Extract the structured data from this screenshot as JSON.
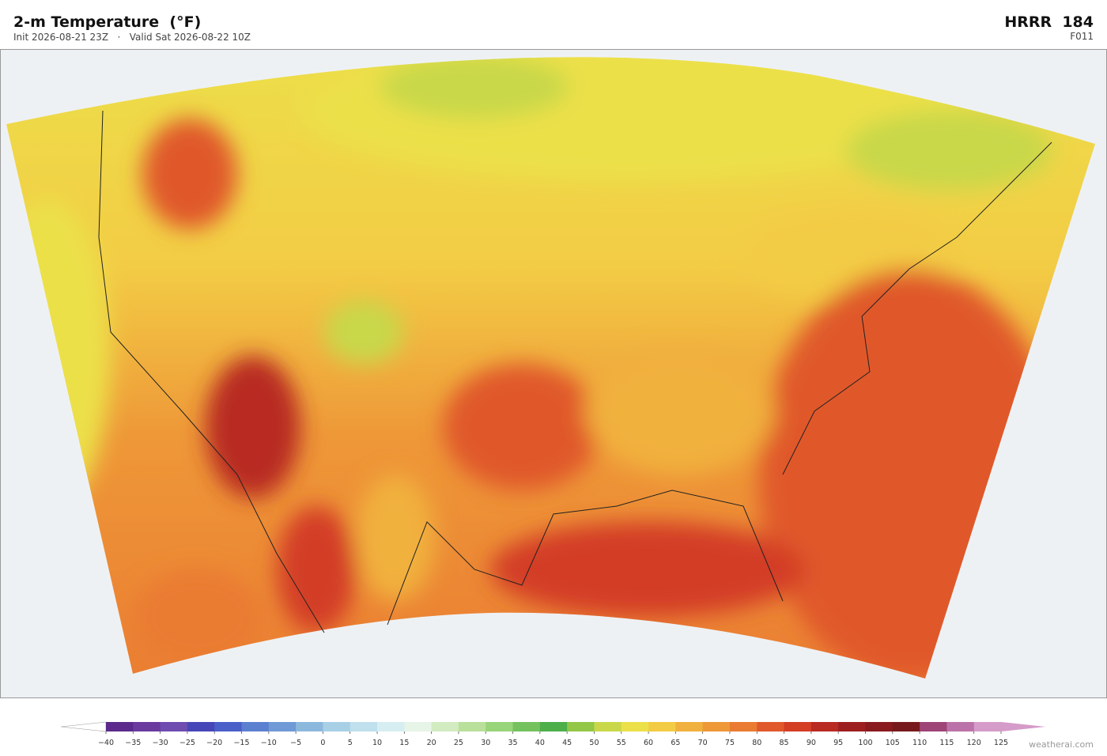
{
  "header": {
    "title": "2-m Temperature  (°F)",
    "subtitle": "Init 2026-08-21 23Z   ·   Valid Sat 2026-08-22 10Z",
    "model": "HRRR  184",
    "forecast": "F011"
  },
  "colorbar": {
    "ticks": [
      {
        "value": -40,
        "label": "−40"
      },
      {
        "value": -35,
        "label": "−35"
      },
      {
        "value": -30,
        "label": "−30"
      },
      {
        "value": -25,
        "label": "−25"
      },
      {
        "value": -20,
        "label": "−20"
      },
      {
        "value": -15,
        "label": "−15"
      },
      {
        "value": -10,
        "label": "−10"
      },
      {
        "value": -5,
        "label": "−5"
      },
      0,
      5,
      10,
      15,
      20,
      25,
      30,
      35,
      40,
      45,
      50,
      55,
      60,
      65,
      70,
      75,
      80,
      85,
      90,
      95,
      100,
      105,
      110,
      115,
      120,
      125
    ],
    "colors": [
      "#5b2a8c",
      "#6b3a9f",
      "#6e4cb0",
      "#4646b8",
      "#4a5fc8",
      "#5b80d0",
      "#6f9ad6",
      "#8db8dd",
      "#a7d0e6",
      "#bfe0ec",
      "#d6eef2",
      "#e6f5e8",
      "#d2ebc0",
      "#b9e09a",
      "#98d47a",
      "#74c25e",
      "#4caf4a",
      "#93c748",
      "#c8d84a",
      "#ece04a",
      "#f3cc45",
      "#f1b13e",
      "#ee9838",
      "#ea7b32",
      "#e0582c",
      "#d33e25",
      "#b82a22",
      "#9e1f20",
      "#891a1d",
      "#77191c",
      "#9e4476",
      "#bb72a8",
      "#d59bc9"
    ],
    "under_color": "#ffffff",
    "over_color": "#d59bc9"
  },
  "credit": "weatherai.com"
}
